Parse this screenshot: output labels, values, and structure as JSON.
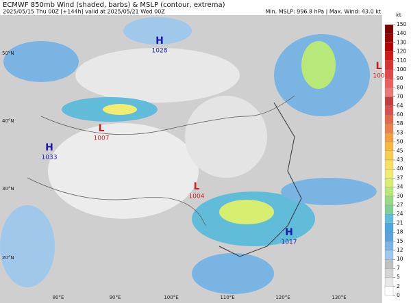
{
  "header": {
    "title": "ECMWF 850mb Wind (shaded, barbs) & MSLP (contour, extrema)",
    "subtitle": "2025/05/15 Thu 00Z [+144h] valid at 2025/05/21 Wed 00Z",
    "stats": "Min. MSLP: 996.8 hPa | Max. Wind: 43.0 kt"
  },
  "centers": [
    {
      "label": "H",
      "value": "1028"
    },
    {
      "label": "L",
      "value": "100"
    },
    {
      "label": "L",
      "value": "1007"
    },
    {
      "label": "H",
      "value": "1033"
    },
    {
      "label": "L",
      "value": "1004"
    },
    {
      "label": "H",
      "value": "1017"
    }
  ],
  "lat_labels": [
    "50°N",
    "40°N",
    "30°N",
    "20°N"
  ],
  "lon_labels": [
    "80°E",
    "90°E",
    "100°E",
    "110°E",
    "120°E",
    "130°E"
  ],
  "colorbar": {
    "unit": "kt",
    "ticks": [
      150,
      140,
      130,
      120,
      110,
      100,
      90,
      80,
      70,
      64,
      60,
      58,
      53,
      50,
      45,
      43,
      40,
      37,
      34,
      30,
      27,
      24,
      21,
      18,
      15,
      12,
      10,
      7,
      5,
      2,
      0
    ],
    "colors": [
      "#7a0000",
      "#990000",
      "#b30000",
      "#cc1a1a",
      "#d93333",
      "#e04a4a",
      "#e86060",
      "#ee7777",
      "#c04040",
      "#d85050",
      "#e06a4a",
      "#e8844a",
      "#f0a040",
      "#f5b840",
      "#f7cf50",
      "#f8e060",
      "#f0ec70",
      "#d8ee70",
      "#b8e878",
      "#9ad884",
      "#7ecf98",
      "#60bcd8",
      "#4aa8e0",
      "#5aa2dc",
      "#7ab4e2",
      "#a0c8ea",
      "#c0c0c0",
      "#d4d4d4",
      "#e8e8e8",
      "#ffffff"
    ]
  }
}
